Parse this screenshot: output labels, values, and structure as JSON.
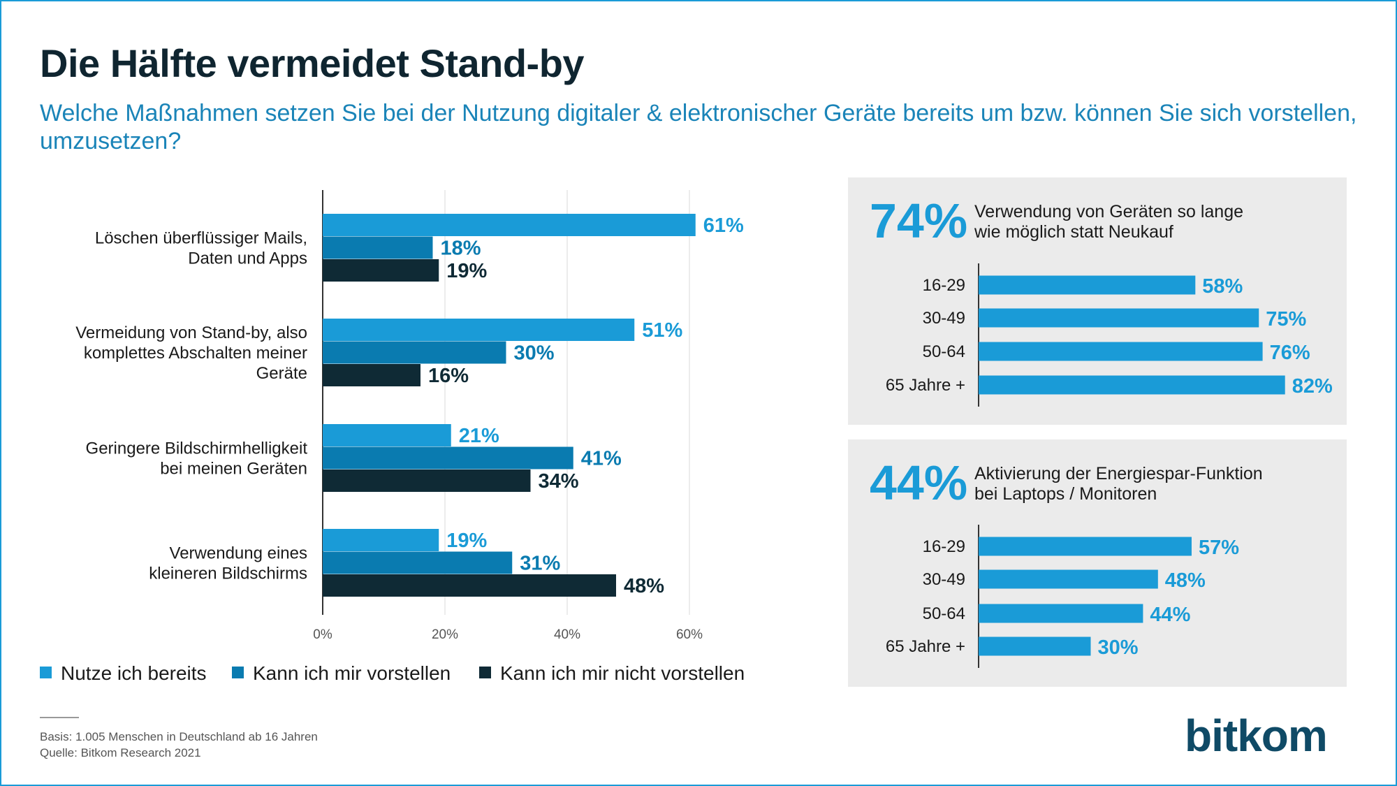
{
  "header": {
    "title": "Die Hälfte vermeidet Stand-by",
    "subtitle": "Welche Maßnahmen setzen Sie bei der Nutzung digitaler & elektronischer Geräte bereits um bzw. können Sie sich vorstellen, umzusetzen?"
  },
  "colors": {
    "nutze": "#1a9bd7",
    "kann": "#0a7bb0",
    "nicht": "#0f2a35",
    "panel": "#ebebeb",
    "accent": "#1a9bd7"
  },
  "chart_data": [
    {
      "type": "bar",
      "orientation": "horizontal",
      "categories": [
        [
          "Löschen überflüssiger Mails,",
          "Daten und Apps"
        ],
        [
          "Vermeidung von Stand-by, also",
          "komplettes Abschalten meiner",
          "Geräte"
        ],
        [
          "Geringere Bildschirmhelligkeit",
          "bei meinen Geräten"
        ],
        [
          "Verwendung eines",
          "kleineren Bildschirms"
        ]
      ],
      "series": [
        {
          "name": "Nutze ich bereits",
          "values": [
            61,
            51,
            21,
            19
          ]
        },
        {
          "name": "Kann ich mir vorstellen",
          "values": [
            18,
            30,
            41,
            31
          ]
        },
        {
          "name": "Kann ich mir nicht vorstellen",
          "values": [
            19,
            16,
            34,
            48
          ]
        }
      ],
      "value_suffix": "%",
      "xlim": [
        0,
        60
      ],
      "ticks": [
        "0%",
        "20%",
        "40%",
        "60%"
      ],
      "legend": "bottom"
    },
    {
      "type": "bar",
      "orientation": "horizontal",
      "headline": "74%",
      "title": "Verwendung von Geräten so lange wie möglich statt Neukauf",
      "title_lines": [
        "Verwendung von Geräten so lange",
        "wie möglich statt Neukauf"
      ],
      "categories": [
        "16-29",
        "30-49",
        "50-64",
        "65 Jahre +"
      ],
      "values": [
        58,
        75,
        76,
        82
      ],
      "value_suffix": "%"
    },
    {
      "type": "bar",
      "orientation": "horizontal",
      "headline": "44%",
      "title": "Aktivierung der Energiespar-Funktion bei Laptops / Monitoren",
      "title_lines": [
        "Aktivierung der Energiespar-Funktion",
        "bei Laptops / Monitoren"
      ],
      "categories": [
        "16-29",
        "30-49",
        "50-64",
        "65 Jahre +"
      ],
      "values": [
        57,
        48,
        44,
        30
      ],
      "value_suffix": "%"
    }
  ],
  "footer": {
    "basis": "Basis: 1.005 Menschen in Deutschland ab 16 Jahren",
    "quelle": "Quelle: Bitkom Research 2021",
    "logo": "bitkom"
  }
}
